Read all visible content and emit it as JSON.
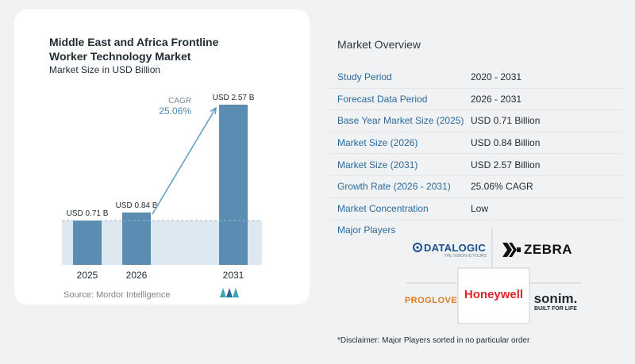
{
  "chart_data": {
    "type": "bar",
    "title": "Middle East and Africa Frontline Worker Technology Market",
    "subtitle": "Market Size in USD Billion",
    "categories": [
      "2025",
      "2026",
      "2031"
    ],
    "values": [
      0.71,
      0.84,
      2.57
    ],
    "value_labels": [
      "USD 0.71 B",
      "USD 0.84 B",
      "USD 2.57 B"
    ],
    "cagr_label": "CAGR",
    "cagr_value": "25.06%",
    "bar_color": "#5b8db3",
    "source": "Source:  Mordor Intelligence"
  },
  "overview": {
    "title": "Market Overview",
    "rows": [
      {
        "label": "Study Period",
        "value": "2020 - 2031"
      },
      {
        "label": "Forecast Data Period",
        "value": "2026 - 2031"
      },
      {
        "label": "Base Year Market Size (2025)",
        "value": "USD 0.71 Billion"
      },
      {
        "label": "Market Size (2026)",
        "value": "USD 0.84 Billion"
      },
      {
        "label": "Market Size (2031)",
        "value": "USD 2.57 Billion"
      },
      {
        "label": "Growth Rate (2026 - 2031)",
        "value": "25.06% CAGR"
      },
      {
        "label": "Market Concentration",
        "value": "Low"
      }
    ],
    "players_label": "Major Players",
    "players": {
      "datalogic": "DATALOGIC",
      "datalogic_tagline": "THE VISION IS YOURS",
      "zebra": "ZEBRA",
      "proglove": "PROGLOVE",
      "honeywell": "Honeywell",
      "sonim": "sonim.",
      "sonim_tagline": "BUILT FOR LIFE"
    },
    "disclaimer": "*Disclaimer: Major Players sorted in no particular order"
  }
}
